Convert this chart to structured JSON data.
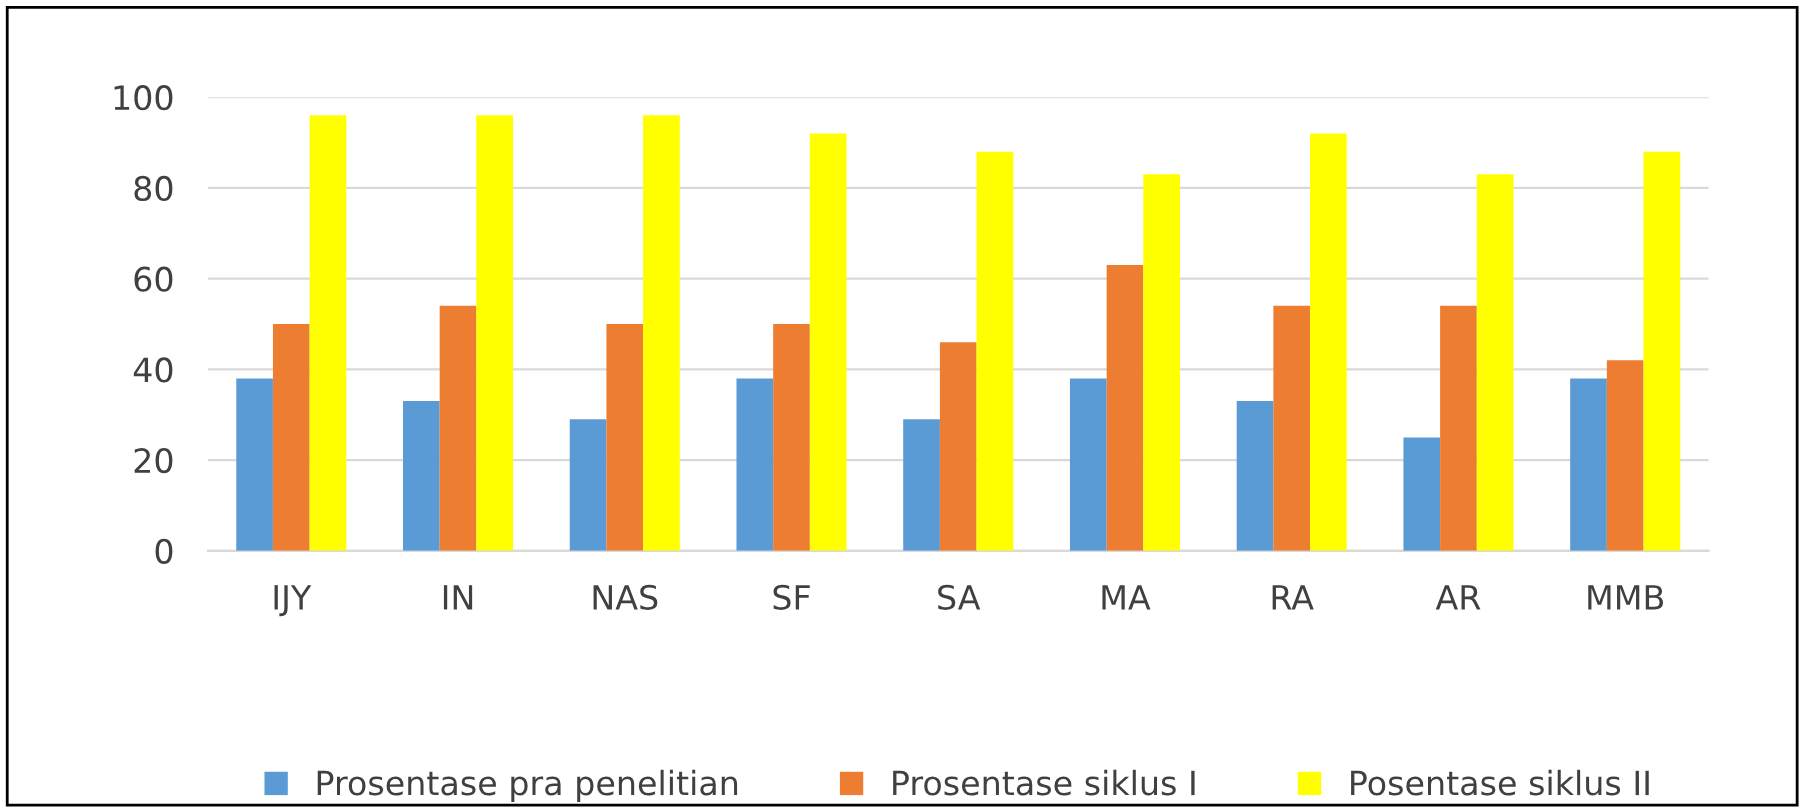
{
  "chart_data": {
    "type": "bar",
    "categories": [
      "IJY",
      "IN",
      "NAS",
      "SF",
      "SA",
      "MA",
      "RA",
      "AR",
      "MMB"
    ],
    "series": [
      {
        "name": "Prosentase pra penelitian",
        "color": "#5b9bd5",
        "values": [
          38,
          33,
          29,
          38,
          29,
          38,
          33,
          25,
          38
        ]
      },
      {
        "name": "Prosentase siklus I",
        "color": "#ed7d31",
        "values": [
          50,
          54,
          50,
          50,
          46,
          63,
          54,
          54,
          42
        ]
      },
      {
        "name": "Posentase siklus II",
        "color": "#ffff00",
        "values": [
          96,
          96,
          96,
          92,
          88,
          83,
          92,
          83,
          88
        ]
      }
    ],
    "ylim": [
      0,
      100
    ],
    "yticks": [
      0,
      20,
      40,
      60,
      80,
      100
    ],
    "grid": "y",
    "legend": "bottom"
  }
}
